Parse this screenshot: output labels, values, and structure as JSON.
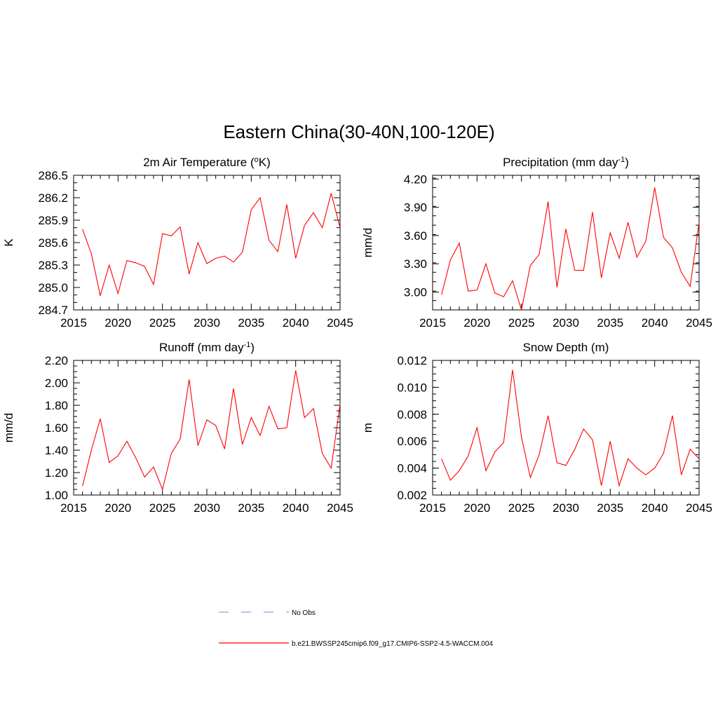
{
  "figure_title": "Eastern China(30-40N,100-120E)",
  "legend": {
    "obs_label": "No Obs",
    "model_label": "b.e21.BWSSP245cmip6.f09_g17.CMIP6-SSP2-4.5-WACCM.004",
    "obs_color": "#9a9ae0",
    "model_color": "#ff0000"
  },
  "chart_data": [
    {
      "type": "line",
      "title_main": "2m Air Temperature (",
      "title_sup": "o",
      "title_tail": "K)",
      "ylabel": "K",
      "xlim": [
        2015,
        2045
      ],
      "ylim": [
        284.7,
        286.5
      ],
      "x_ticks": [
        2015,
        2020,
        2025,
        2030,
        2035,
        2040,
        2045
      ],
      "x_tick_labels": [
        "2015",
        "2020",
        "2025",
        "2030",
        "2035",
        "2040",
        "2045"
      ],
      "y_ticks": [
        284.7,
        285.0,
        285.3,
        285.6,
        285.9,
        286.2,
        286.5
      ],
      "y_tick_labels": [
        "284.7",
        "285.0",
        "285.3",
        "285.6",
        "285.9",
        "286.2",
        "286.5"
      ],
      "y_minor_step": 0.1,
      "x": [
        2016,
        2017,
        2018,
        2019,
        2020,
        2021,
        2022,
        2023,
        2024,
        2025,
        2026,
        2027,
        2028,
        2029,
        2030,
        2031,
        2032,
        2033,
        2034,
        2035,
        2036,
        2037,
        2038,
        2039,
        2040,
        2041,
        2042,
        2043,
        2044,
        2045
      ],
      "values": [
        285.78,
        285.45,
        284.89,
        285.3,
        284.92,
        285.36,
        285.33,
        285.28,
        285.04,
        285.72,
        285.69,
        285.81,
        285.18,
        285.6,
        285.32,
        285.39,
        285.42,
        285.34,
        285.47,
        286.04,
        286.2,
        285.63,
        285.48,
        286.11,
        285.39,
        285.83,
        286.0,
        285.8,
        286.26,
        285.8
      ]
    },
    {
      "type": "line",
      "title_main": "Precipitation (mm day",
      "title_sup": "-1",
      "title_tail": ")",
      "ylabel": "mm/d",
      "xlim": [
        2015,
        2045
      ],
      "ylim": [
        2.81,
        4.24
      ],
      "x_ticks": [
        2015,
        2020,
        2025,
        2030,
        2035,
        2040,
        2045
      ],
      "x_tick_labels": [
        "2015",
        "2020",
        "2025",
        "2030",
        "2035",
        "2040",
        "2045"
      ],
      "y_ticks": [
        3.0,
        3.3,
        3.6,
        3.9,
        4.2
      ],
      "y_tick_labels": [
        "3.00",
        "3.30",
        "3.60",
        "3.90",
        "4.20"
      ],
      "y_minor_step": 0.1,
      "x": [
        2016,
        2017,
        2018,
        2019,
        2020,
        2021,
        2022,
        2023,
        2024,
        2025,
        2026,
        2027,
        2028,
        2029,
        2030,
        2031,
        2032,
        2033,
        2034,
        2035,
        2036,
        2037,
        2038,
        2039,
        2040,
        2041,
        2042,
        2043,
        2044,
        2045
      ],
      "values": [
        2.97,
        3.34,
        3.52,
        3.01,
        3.02,
        3.3,
        2.99,
        2.95,
        3.12,
        2.81,
        3.28,
        3.4,
        3.96,
        3.05,
        3.67,
        3.23,
        3.23,
        3.85,
        3.15,
        3.63,
        3.36,
        3.74,
        3.37,
        3.54,
        4.11,
        3.58,
        3.47,
        3.21,
        3.06,
        3.74
      ]
    },
    {
      "type": "line",
      "title_main": "Runoff (mm day",
      "title_sup": "-1",
      "title_tail": ")",
      "ylabel": "mm/d",
      "xlim": [
        2015,
        2045
      ],
      "ylim": [
        1.0,
        2.2
      ],
      "x_ticks": [
        2015,
        2020,
        2025,
        2030,
        2035,
        2040,
        2045
      ],
      "x_tick_labels": [
        "2015",
        "2020",
        "2025",
        "2030",
        "2035",
        "2040",
        "2045"
      ],
      "y_ticks": [
        1.0,
        1.2,
        1.4,
        1.6,
        1.8,
        2.0,
        2.2
      ],
      "y_tick_labels": [
        "1.00",
        "1.20",
        "1.40",
        "1.60",
        "1.80",
        "2.00",
        "2.20"
      ],
      "y_minor_step": 0.05,
      "x": [
        2016,
        2017,
        2018,
        2019,
        2020,
        2021,
        2022,
        2023,
        2024,
        2025,
        2026,
        2027,
        2028,
        2029,
        2030,
        2031,
        2032,
        2033,
        2034,
        2035,
        2036,
        2037,
        2038,
        2039,
        2040,
        2041,
        2042,
        2043,
        2044,
        2045
      ],
      "values": [
        1.08,
        1.4,
        1.68,
        1.29,
        1.35,
        1.48,
        1.33,
        1.16,
        1.25,
        1.05,
        1.37,
        1.5,
        2.03,
        1.44,
        1.67,
        1.62,
        1.41,
        1.95,
        1.45,
        1.69,
        1.53,
        1.79,
        1.59,
        1.6,
        2.11,
        1.69,
        1.77,
        1.37,
        1.24,
        1.81
      ]
    },
    {
      "type": "line",
      "title_main": "Snow Depth (m)",
      "title_sup": "",
      "title_tail": "",
      "ylabel": "m",
      "xlim": [
        2015,
        2045
      ],
      "ylim": [
        0.002,
        0.012
      ],
      "x_ticks": [
        2015,
        2020,
        2025,
        2030,
        2035,
        2040,
        2045
      ],
      "x_tick_labels": [
        "2015",
        "2020",
        "2025",
        "2030",
        "2035",
        "2040",
        "2045"
      ],
      "y_ticks": [
        0.002,
        0.004,
        0.006,
        0.008,
        0.01,
        0.012
      ],
      "y_tick_labels": [
        "0.002",
        "0.004",
        "0.006",
        "0.008",
        "0.010",
        "0.012"
      ],
      "y_minor_step": 0.0005,
      "x": [
        2016,
        2017,
        2018,
        2019,
        2020,
        2021,
        2022,
        2023,
        2024,
        2025,
        2026,
        2027,
        2028,
        2029,
        2030,
        2031,
        2032,
        2033,
        2034,
        2035,
        2036,
        2037,
        2038,
        2039,
        2040,
        2041,
        2042,
        2043,
        2044,
        2045
      ],
      "values": [
        0.0047,
        0.0031,
        0.0038,
        0.0049,
        0.007,
        0.0038,
        0.0052,
        0.0059,
        0.0113,
        0.0063,
        0.0033,
        0.005,
        0.0079,
        0.0044,
        0.0042,
        0.0054,
        0.0069,
        0.0061,
        0.0027,
        0.006,
        0.0027,
        0.0047,
        0.004,
        0.0035,
        0.004,
        0.0051,
        0.0079,
        0.0035,
        0.0054,
        0.0047
      ]
    }
  ]
}
